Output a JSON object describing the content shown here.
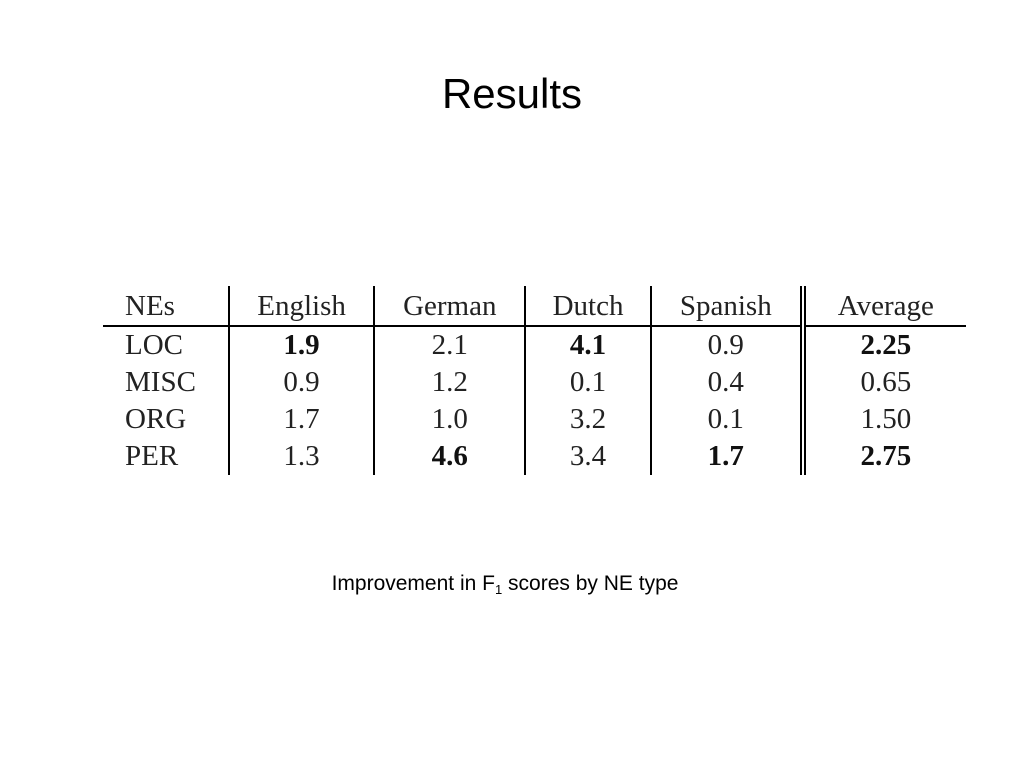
{
  "slide": {
    "title": "Results"
  },
  "table": {
    "headers": [
      "NEs",
      "English",
      "German",
      "Dutch",
      "Spanish",
      "Average"
    ],
    "rows": [
      {
        "ne": "LOC",
        "english": "1.9",
        "german": "2.1",
        "dutch": "4.1",
        "spanish": "0.9",
        "average": "2.25"
      },
      {
        "ne": "MISC",
        "english": "0.9",
        "german": "1.2",
        "dutch": "0.1",
        "spanish": "0.4",
        "average": "0.65"
      },
      {
        "ne": "ORG",
        "english": "1.7",
        "german": "1.0",
        "dutch": "3.2",
        "spanish": "0.1",
        "average": "1.50"
      },
      {
        "ne": "PER",
        "english": "1.3",
        "german": "4.6",
        "dutch": "3.4",
        "spanish": "1.7",
        "average": "2.75"
      }
    ],
    "bold_cells": [
      "LOC.english",
      "LOC.dutch",
      "LOC.average",
      "PER.german",
      "PER.spanish",
      "PER.average"
    ]
  },
  "caption": {
    "before": "Improvement in F",
    "subscript": "1",
    "after": " scores by NE type"
  }
}
